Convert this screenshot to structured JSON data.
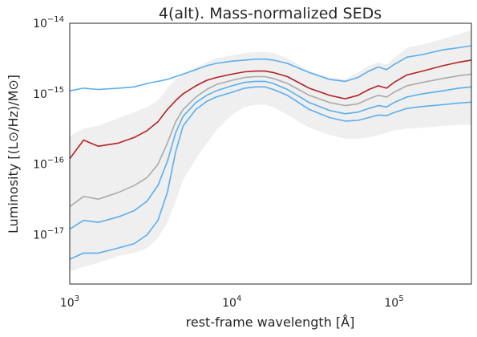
{
  "chart_data": {
    "type": "line",
    "title": "4(alt). Mass-normalized SEDs",
    "xlabel": "rest-frame wavelength [Å]",
    "ylabel": "Luminosity [(L⊙/Hz)/M⊙]",
    "xscale": "log",
    "yscale": "log",
    "xlim": [
      1000,
      300000
    ],
    "ylim": [
      2e-18,
      1e-14
    ],
    "grid": false,
    "x_ticks": [
      {
        "value": 1000,
        "base": "10",
        "exp": "3"
      },
      {
        "value": 10000,
        "base": "10",
        "exp": "4"
      },
      {
        "value": 100000,
        "base": "10",
        "exp": "5"
      }
    ],
    "y_ticks": [
      {
        "value": 1e-17,
        "base": "10",
        "exp": "−17"
      },
      {
        "value": 1e-16,
        "base": "10",
        "exp": "−16"
      },
      {
        "value": 1e-15,
        "base": "10",
        "exp": "−15"
      },
      {
        "value": 1e-14,
        "base": "10",
        "exp": "−14"
      }
    ],
    "x": [
      1000,
      1216,
      1500,
      2000,
      2500,
      3000,
      3500,
      4000,
      4500,
      5000,
      6000,
      7000,
      8000,
      10000,
      12000,
      14000,
      16000,
      18000,
      22000,
      30000,
      40000,
      50000,
      60000,
      70000,
      80000,
      90000,
      100000,
      120000,
      150000,
      200000,
      250000,
      300000
    ],
    "band": {
      "color": "#efefef",
      "upper": [
        2.5e-16,
        3.2e-16,
        3.5e-16,
        4.5e-16,
        5.5e-16,
        6.5e-16,
        8e-16,
        1.2e-15,
        1.6e-15,
        1.9e-15,
        2.4e-15,
        2.8e-15,
        3.2e-15,
        3.5e-15,
        3.8e-15,
        3.9e-15,
        3.9e-15,
        3.8e-15,
        3.2e-15,
        2.1e-15,
        1.7e-15,
        1.6e-15,
        2e-15,
        2.5e-15,
        2.8e-15,
        2.6e-15,
        3.2e-15,
        4.5e-15,
        5e-15,
        6e-15,
        7e-15,
        8e-15
      ],
      "lower": [
        3e-18,
        3.5e-18,
        4e-18,
        5e-18,
        5.5e-18,
        6.5e-18,
        9e-18,
        1.5e-17,
        3e-17,
        6e-17,
        1.2e-16,
        2e-16,
        3e-16,
        5e-16,
        6.5e-16,
        7e-16,
        7e-16,
        6.5e-16,
        5e-16,
        3.3e-16,
        2.6e-16,
        2.3e-16,
        2.3e-16,
        2.4e-16,
        2.6e-16,
        2.8e-16,
        3e-16,
        3.2e-16,
        3.3e-16,
        3.5e-16,
        3.6e-16,
        3.6e-16
      ]
    },
    "series": [
      {
        "color": "#5aaeee",
        "values": [
          1.1e-15,
          1.2e-15,
          1.15e-15,
          1.2e-15,
          1.25e-15,
          1.4e-15,
          1.5e-15,
          1.6e-15,
          1.75e-15,
          1.9e-15,
          2.2e-15,
          2.5e-15,
          2.7e-15,
          2.9e-15,
          3e-15,
          3.1e-15,
          3.1e-15,
          3e-15,
          2.7e-15,
          2e-15,
          1.6e-15,
          1.5e-15,
          1.7e-15,
          2.1e-15,
          2.4e-15,
          2.2e-15,
          2.6e-15,
          3.3e-15,
          3.6e-15,
          4.2e-15,
          4.5e-15,
          4.8e-15
        ]
      },
      {
        "color": "#b22222",
        "values": [
          1.2e-16,
          2.2e-16,
          1.8e-16,
          2e-16,
          2.4e-16,
          3e-16,
          4e-16,
          6e-16,
          8e-16,
          1e-15,
          1.3e-15,
          1.55e-15,
          1.7e-15,
          1.9e-15,
          2.05e-15,
          2.1e-15,
          2.1e-15,
          2e-15,
          1.75e-15,
          1.2e-15,
          9.5e-16,
          8.5e-16,
          9.5e-16,
          1.15e-15,
          1.3e-15,
          1.2e-15,
          1.45e-15,
          1.85e-15,
          2.1e-15,
          2.5e-15,
          2.8e-15,
          3e-15
        ]
      },
      {
        "color": "#aaaaaa",
        "values": [
          2.5e-17,
          3.5e-17,
          3.2e-17,
          4e-17,
          5e-17,
          6.5e-17,
          1e-16,
          2e-16,
          4e-16,
          6e-16,
          9e-16,
          1.15e-15,
          1.35e-15,
          1.55e-15,
          1.7e-15,
          1.75e-15,
          1.75e-15,
          1.65e-15,
          1.4e-15,
          9.5e-16,
          7.5e-16,
          6.8e-16,
          7.2e-16,
          8.5e-16,
          9.5e-16,
          9e-16,
          1.05e-15,
          1.3e-15,
          1.45e-15,
          1.65e-15,
          1.8e-15,
          1.9e-15
        ]
      },
      {
        "color": "#5aaeee",
        "values": [
          1.2e-17,
          1.6e-17,
          1.5e-17,
          1.8e-17,
          2.2e-17,
          3e-17,
          5e-17,
          1.1e-16,
          2.8e-16,
          4.8e-16,
          7.5e-16,
          9.5e-16,
          1.1e-15,
          1.3e-15,
          1.45e-15,
          1.5e-15,
          1.5e-15,
          1.4e-15,
          1.15e-15,
          7.5e-16,
          5.8e-16,
          5.2e-16,
          5.5e-16,
          6.2e-16,
          6.8e-16,
          6.5e-16,
          7.5e-16,
          9e-16,
          1e-15,
          1.1e-15,
          1.2e-15,
          1.25e-15
        ]
      },
      {
        "color": "#5aaeee",
        "values": [
          4.5e-18,
          5.5e-18,
          5.5e-18,
          6.5e-18,
          7.5e-18,
          1e-17,
          1.6e-17,
          4e-17,
          1.5e-16,
          3.5e-16,
          6e-16,
          7.8e-16,
          9e-16,
          1.05e-15,
          1.2e-15,
          1.25e-15,
          1.25e-15,
          1.15e-15,
          9.5e-16,
          6e-16,
          4.6e-16,
          4.1e-16,
          4.2e-16,
          4.6e-16,
          5e-16,
          4.9e-16,
          5.4e-16,
          6.2e-16,
          6.6e-16,
          7e-16,
          7.4e-16,
          7.6e-16
        ]
      }
    ]
  }
}
